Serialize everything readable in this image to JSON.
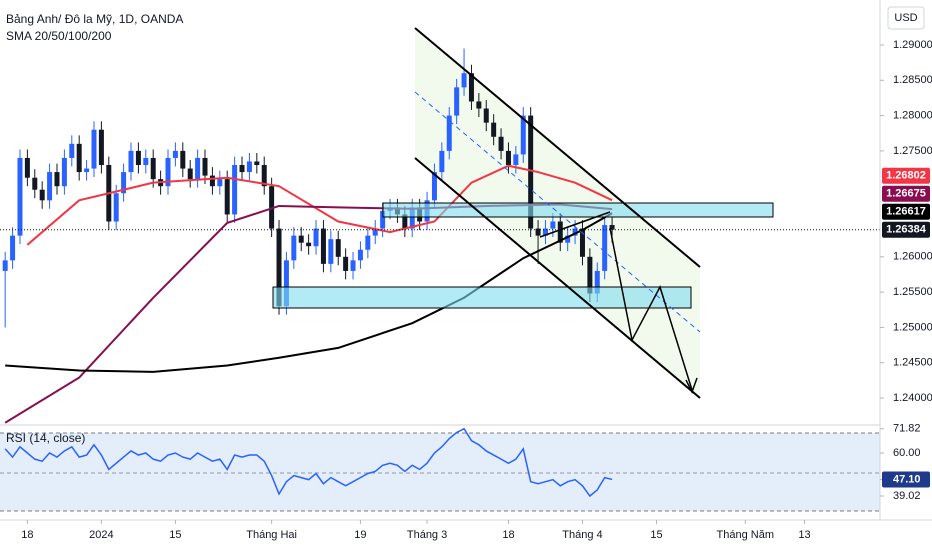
{
  "chart_data": [
    {
      "type": "candlestick",
      "title": "Bảng Anh/ Đô la Mỹ, 1D, OANDA",
      "subtitle": "SMA 20/50/100/200",
      "currency": "USD",
      "up_color": "#2962ff",
      "down_color": "#131722",
      "open": [
        1.258,
        1.2595,
        1.263,
        1.274,
        1.2712,
        1.2695,
        1.268,
        1.272,
        1.27,
        1.274,
        1.276,
        1.272,
        1.2725,
        1.278,
        1.273,
        1.265,
        1.269,
        1.272,
        1.275,
        1.273,
        1.274,
        1.271,
        1.27,
        1.274,
        1.275,
        1.2725,
        1.271,
        1.274,
        1.2715,
        1.27,
        1.271,
        1.266,
        1.273,
        1.272,
        1.2735,
        1.273,
        1.27,
        1.264,
        1.253,
        1.2595,
        1.263,
        1.262,
        1.2615,
        1.264,
        1.259,
        1.2625,
        1.26,
        1.258,
        1.2595,
        1.261,
        1.263,
        1.264,
        1.2665,
        1.267,
        1.266,
        1.264,
        1.267,
        1.265,
        1.268,
        1.272,
        1.275,
        1.28,
        1.284,
        1.286,
        1.282,
        1.281,
        1.279,
        1.277,
        1.275,
        1.273,
        1.2745,
        1.28,
        1.264,
        1.263,
        1.264,
        1.265,
        1.262,
        1.263,
        1.264,
        1.26,
        1.2548,
        1.258,
        1.2645
      ],
      "high": [
        1.2607,
        1.2642,
        1.2752,
        1.2752,
        1.2724,
        1.2707,
        1.2732,
        1.2732,
        1.2752,
        1.2772,
        1.2772,
        1.2737,
        1.2792,
        1.2792,
        1.2742,
        1.2702,
        1.2732,
        1.2762,
        1.2762,
        1.2752,
        1.2752,
        1.2722,
        1.2752,
        1.2762,
        1.2762,
        1.2737,
        1.2752,
        1.2752,
        1.2727,
        1.2722,
        1.2722,
        1.2742,
        1.2742,
        1.2747,
        1.2747,
        1.2742,
        1.2712,
        1.2652,
        1.2607,
        1.2642,
        1.2642,
        1.2632,
        1.2652,
        1.2652,
        1.2637,
        1.2637,
        1.2612,
        1.2607,
        1.2622,
        1.2642,
        1.2652,
        1.2677,
        1.2682,
        1.2682,
        1.2672,
        1.2682,
        1.2682,
        1.2692,
        1.2732,
        1.2762,
        1.2812,
        1.2852,
        1.2895,
        1.2872,
        1.2832,
        1.2822,
        1.2802,
        1.2782,
        1.2762,
        1.2757,
        1.2812,
        1.2812,
        1.2652,
        1.2652,
        1.2662,
        1.2662,
        1.2642,
        1.2652,
        1.2652,
        1.2612,
        1.2592,
        1.2657,
        1.2657
      ],
      "low": [
        1.25,
        1.2583,
        1.2618,
        1.27,
        1.2683,
        1.2668,
        1.2668,
        1.2688,
        1.2688,
        1.2728,
        1.2708,
        1.2708,
        1.2713,
        1.2718,
        1.2638,
        1.2638,
        1.2678,
        1.2708,
        1.2718,
        1.2718,
        1.2698,
        1.2688,
        1.2688,
        1.2728,
        1.2713,
        1.2698,
        1.2698,
        1.2703,
        1.2688,
        1.2688,
        1.2648,
        1.2648,
        1.2708,
        1.2708,
        1.2718,
        1.2688,
        1.2628,
        1.2518,
        1.2518,
        1.2583,
        1.2608,
        1.2603,
        1.2603,
        1.2578,
        1.2578,
        1.2588,
        1.2568,
        1.2568,
        1.2583,
        1.2598,
        1.2618,
        1.2628,
        1.2653,
        1.2648,
        1.2628,
        1.2628,
        1.2638,
        1.2638,
        1.2668,
        1.2708,
        1.2738,
        1.2788,
        1.2828,
        1.2808,
        1.2798,
        1.2778,
        1.2758,
        1.2738,
        1.2718,
        1.2718,
        1.2733,
        1.2628,
        1.259,
        1.2618,
        1.2628,
        1.2608,
        1.2608,
        1.2618,
        1.2588,
        1.2536,
        1.2536,
        1.2568,
        1.262
      ],
      "close": [
        1.2595,
        1.263,
        1.274,
        1.2712,
        1.2695,
        1.268,
        1.272,
        1.27,
        1.274,
        1.276,
        1.272,
        1.2725,
        1.278,
        1.273,
        1.265,
        1.269,
        1.272,
        1.275,
        1.273,
        1.274,
        1.271,
        1.27,
        1.274,
        1.275,
        1.2725,
        1.271,
        1.274,
        1.2715,
        1.27,
        1.271,
        1.266,
        1.273,
        1.272,
        1.2735,
        1.273,
        1.27,
        1.264,
        1.253,
        1.2595,
        1.263,
        1.262,
        1.2615,
        1.264,
        1.259,
        1.2625,
        1.26,
        1.258,
        1.2595,
        1.261,
        1.263,
        1.264,
        1.2665,
        1.267,
        1.266,
        1.264,
        1.267,
        1.265,
        1.268,
        1.272,
        1.275,
        1.28,
        1.284,
        1.286,
        1.282,
        1.281,
        1.279,
        1.277,
        1.275,
        1.273,
        1.2745,
        1.28,
        1.264,
        1.263,
        1.264,
        1.265,
        1.262,
        1.263,
        1.264,
        1.26,
        1.2548,
        1.258,
        1.2645,
        1.26384
      ],
      "overlays": [
        {
          "color": "#f23645",
          "x": [
            3,
            10,
            20,
            30,
            37,
            45,
            52,
            58,
            63,
            68,
            72,
            77,
            82
          ],
          "values": [
            1.2617,
            1.268,
            1.2705,
            1.2712,
            1.27,
            1.265,
            1.2635,
            1.265,
            1.2705,
            1.2729,
            1.272,
            1.2705,
            1.26802
          ]
        },
        {
          "color": "#880e4f",
          "x": [
            0,
            10,
            20,
            30,
            37,
            45,
            55,
            65,
            75,
            82
          ],
          "values": [
            1.2365,
            1.2429,
            1.2542,
            1.2648,
            1.2672,
            1.267,
            1.2668,
            1.2672,
            1.2674,
            1.26675
          ]
        },
        {
          "color": "#000000",
          "x": [
            0,
            10,
            20,
            30,
            37,
            45,
            55,
            62,
            70,
            78,
            82
          ],
          "values": [
            1.2446,
            1.2439,
            1.2437,
            1.2446,
            1.2457,
            1.2471,
            1.2506,
            1.2542,
            1.2598,
            1.2638,
            1.26617
          ]
        }
      ],
      "xlim": [
        -0.7,
        118.2
      ],
      "xticks": [
        {
          "value": 3,
          "label": "18"
        },
        {
          "value": 13,
          "label": "2024"
        },
        {
          "value": 23,
          "label": "15"
        },
        {
          "value": 36,
          "label": "Tháng Hai"
        },
        {
          "value": 48,
          "label": "19"
        },
        {
          "value": 57,
          "label": "Tháng 3"
        },
        {
          "value": 68,
          "label": "18"
        },
        {
          "value": 78,
          "label": "Tháng 4"
        },
        {
          "value": 88,
          "label": "15"
        },
        {
          "value": 100,
          "label": "Tháng Năm"
        },
        {
          "value": 108,
          "label": "13"
        }
      ],
      "ylim": [
        1.23618,
        1.29637
      ],
      "yticks": [
        {
          "value": 1.29,
          "label": "1.29000"
        },
        {
          "value": 1.285,
          "label": "1.28500"
        },
        {
          "value": 1.28,
          "label": "1.28000"
        },
        {
          "value": 1.275,
          "label": "1.27500"
        },
        {
          "value": 1.26,
          "label": "1.26000"
        },
        {
          "value": 1.255,
          "label": "1.25500"
        },
        {
          "value": 1.25,
          "label": "1.25000"
        },
        {
          "value": 1.245,
          "label": "1.24500"
        },
        {
          "value": 1.24,
          "label": "1.24000"
        }
      ]
    },
    {
      "type": "line",
      "title": "RSI (14, close)",
      "color": "#2962ff",
      "values": [
        62,
        58,
        63,
        60,
        57,
        56,
        60,
        58,
        61,
        63,
        58,
        59,
        64,
        59,
        52,
        55,
        58,
        61,
        59,
        60,
        57,
        56,
        59,
        60,
        58,
        57,
        60,
        58,
        56,
        57,
        52,
        59,
        58,
        59,
        59,
        56,
        49,
        40,
        46,
        49,
        48,
        47,
        50,
        45,
        48,
        46,
        44,
        46,
        48,
        50,
        51,
        54,
        55,
        54,
        51,
        54,
        52,
        55,
        60,
        63,
        67,
        70,
        71.82,
        66,
        64,
        61,
        59,
        57,
        55,
        57,
        62,
        46,
        45,
        46,
        47,
        44,
        46,
        47,
        44,
        39.02,
        42,
        48,
        47.1
      ],
      "ylim": [
        28.29,
        73.66
      ],
      "yticks": [
        71.82,
        {
          "value": 60,
          "label": "60.00"
        },
        {
          "value": 47.1,
          "label": "47.10"
        },
        39.02
      ]
    }
  ]
}
